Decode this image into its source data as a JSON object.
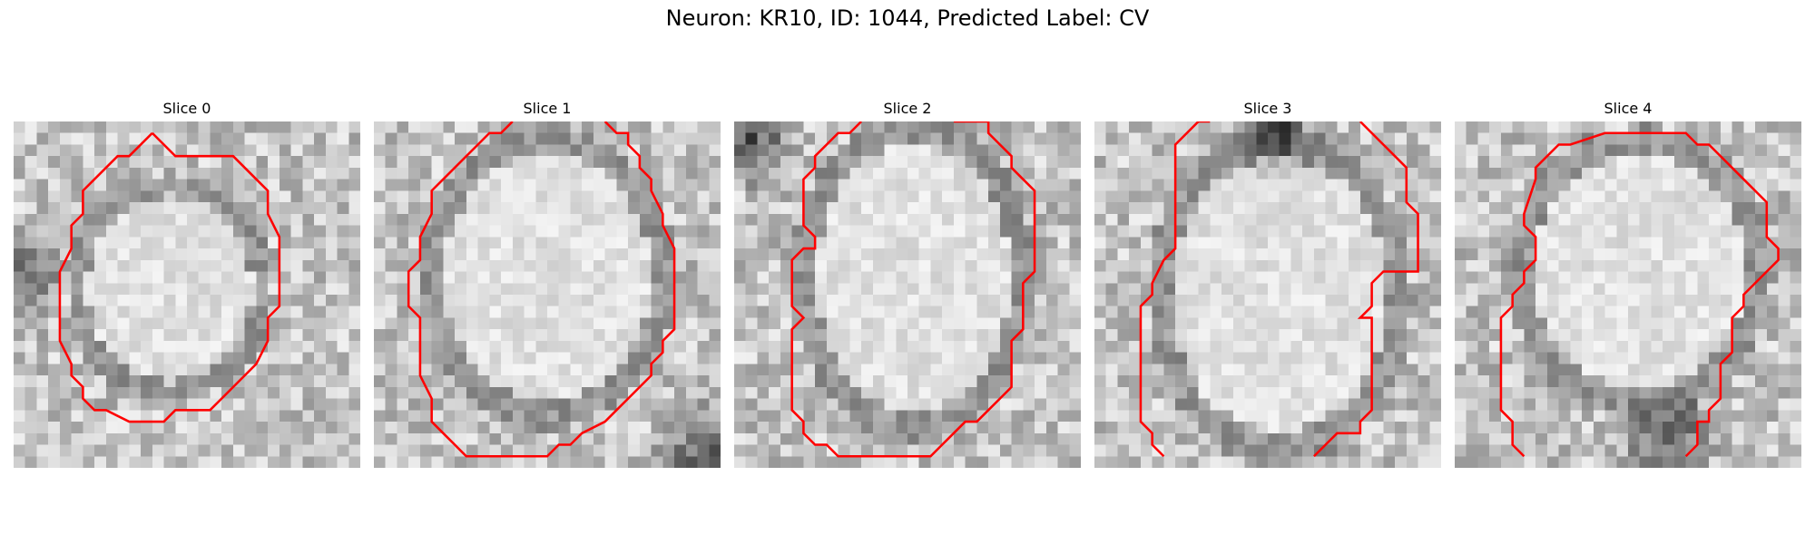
{
  "figure": {
    "title": "Neuron: KR10, ID: 1044, Predicted Label: CV"
  },
  "colors": {
    "contour": "#ff0000",
    "colormap": "grayscale"
  },
  "panels": [
    {
      "title": "Slice 0"
    },
    {
      "title": "Slice 1"
    },
    {
      "title": "Slice 2"
    },
    {
      "title": "Slice 3"
    },
    {
      "title": "Slice 4"
    }
  ]
}
